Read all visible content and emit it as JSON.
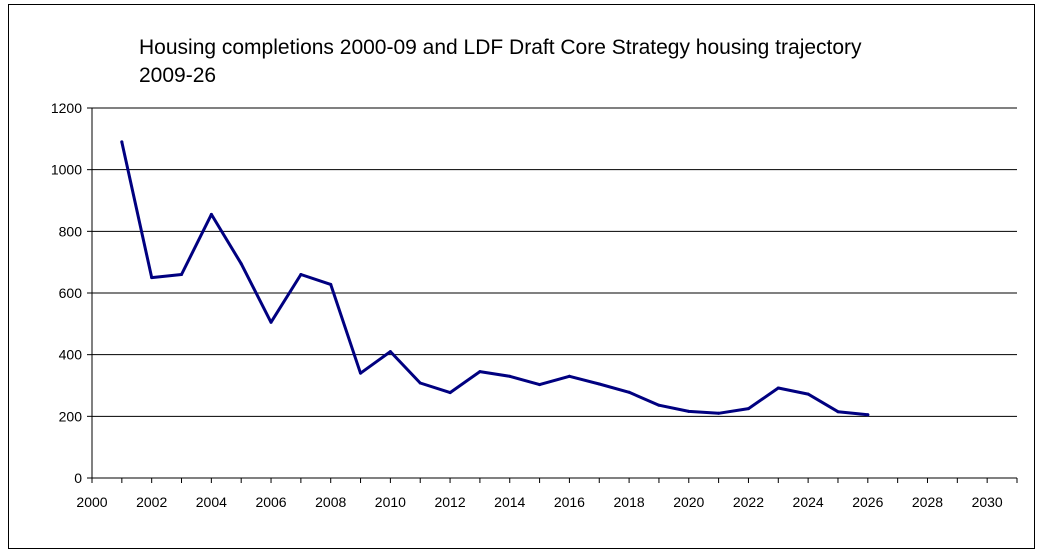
{
  "chart_data": {
    "type": "line",
    "title": "Housing completions 2000-09 and LDF Draft Core Strategy housing trajectory 2009-26",
    "xlabel": "",
    "ylabel": "",
    "xlim": [
      2000,
      2031
    ],
    "ylim": [
      0,
      1200
    ],
    "x_ticks": [
      2000,
      2002,
      2004,
      2006,
      2008,
      2010,
      2012,
      2014,
      2016,
      2018,
      2020,
      2022,
      2024,
      2026,
      2028,
      2030
    ],
    "x_tick_labels": [
      "2000",
      "2002",
      "2004",
      "2006",
      "2008",
      "2010",
      "2012",
      "2014",
      "2016",
      "2018",
      "2020",
      "2022",
      "2024",
      "2026",
      "2028",
      "2030"
    ],
    "y_ticks": [
      0,
      200,
      400,
      600,
      800,
      1000,
      1200
    ],
    "y_tick_labels": [
      "0",
      "200",
      "400",
      "600",
      "800",
      "1000",
      "1200"
    ],
    "grid": "horizontal",
    "legend": "none",
    "line_color": "#000080",
    "series": [
      {
        "x": [
          2001,
          2002,
          2003,
          2004,
          2005,
          2006,
          2007,
          2008,
          2009,
          2010,
          2011,
          2012,
          2013,
          2014,
          2015,
          2016,
          2017,
          2018,
          2019,
          2020,
          2021,
          2022,
          2023,
          2024,
          2025,
          2026
        ],
        "values": [
          1090,
          650,
          660,
          855,
          695,
          505,
          660,
          628,
          340,
          410,
          308,
          277,
          345,
          330,
          303,
          330,
          305,
          278,
          236,
          216,
          210,
          225,
          292,
          272,
          215,
          205
        ]
      }
    ]
  }
}
